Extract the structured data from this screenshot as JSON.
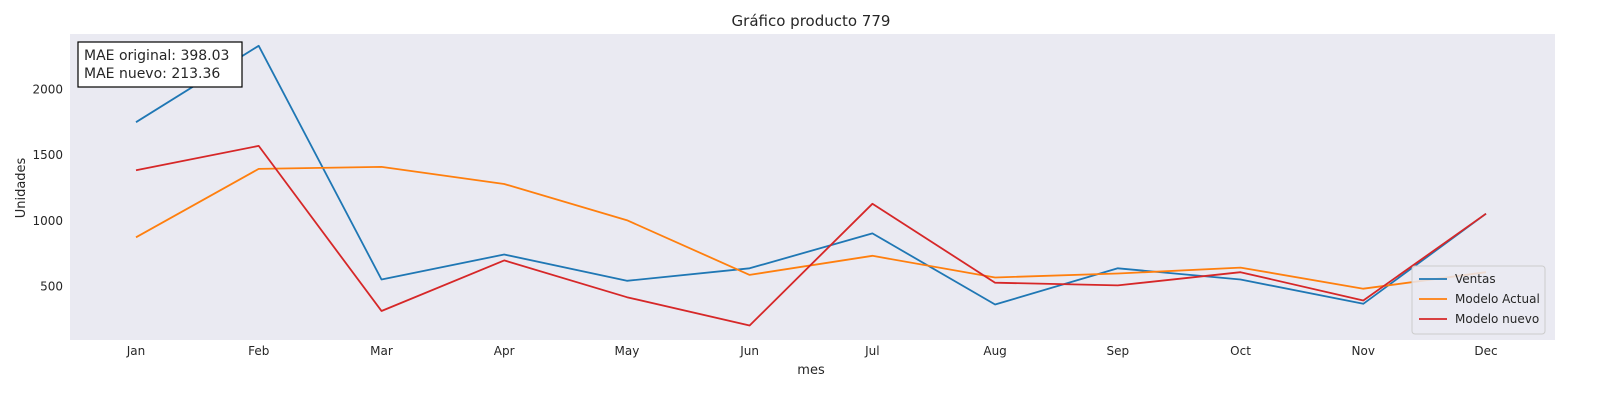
{
  "chart_data": {
    "type": "line",
    "title": "Gráfico producto 779",
    "xlabel": "mes",
    "ylabel": "Unidades",
    "categories": [
      "Jan",
      "Feb",
      "Mar",
      "Apr",
      "May",
      "Jun",
      "Jul",
      "Aug",
      "Sep",
      "Oct",
      "Nov",
      "Dec"
    ],
    "yticks": [
      500,
      1000,
      1500,
      2000
    ],
    "ylim": [
      95,
      2420
    ],
    "grid": false,
    "background": "#eaeaf2",
    "legend_position": "lower-right",
    "annotation": [
      "MAE original: 398.03",
      "MAE nuevo: 213.36"
    ],
    "series": [
      {
        "name": "Ventas",
        "color": "#1f77b4",
        "values": [
          1750,
          2330,
          555,
          745,
          545,
          640,
          905,
          365,
          640,
          555,
          370,
          1055
        ]
      },
      {
        "name": "Modelo Actual",
        "color": "#ff7f0e",
        "values": [
          875,
          1395,
          1410,
          1280,
          1005,
          590,
          735,
          570,
          600,
          645,
          485,
          610
        ]
      },
      {
        "name": "Modelo nuevo",
        "color": "#d62728",
        "values": [
          1385,
          1570,
          315,
          700,
          420,
          205,
          1130,
          530,
          510,
          610,
          395,
          1055
        ]
      }
    ]
  }
}
